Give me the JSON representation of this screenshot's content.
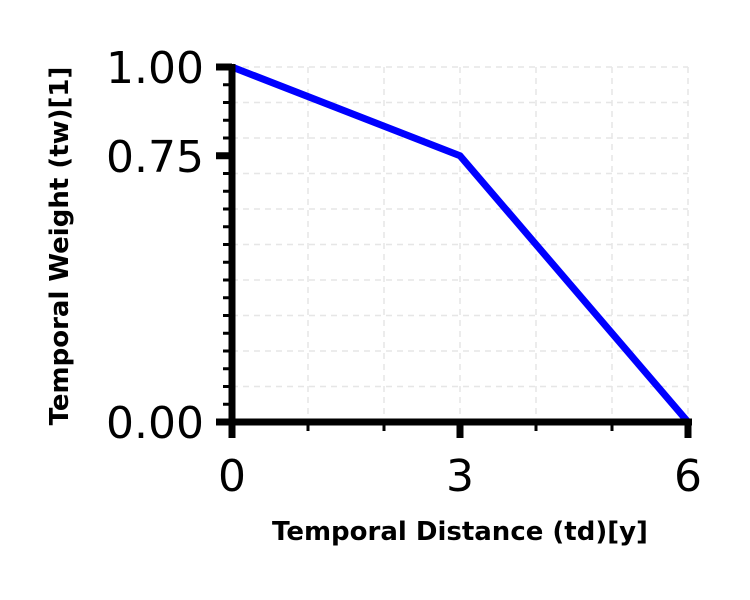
{
  "chart_data": {
    "type": "line",
    "xlabel": "Temporal Distance (td)[y]",
    "ylabel": "Temporal Weight (tw)[1]",
    "xlim": [
      0,
      6
    ],
    "ylim": [
      0,
      1
    ],
    "x_ticks": [
      0,
      3,
      6
    ],
    "x_tick_labels": [
      "0",
      "3",
      "6"
    ],
    "y_ticks": [
      0,
      0.75,
      1
    ],
    "y_tick_labels": [
      "0.00",
      "0.75",
      "1.00"
    ],
    "grid": true,
    "series": [
      {
        "color": "#0000ff",
        "x": [
          0,
          3,
          6
        ],
        "y": [
          1.0,
          0.75,
          0.0
        ]
      }
    ]
  }
}
